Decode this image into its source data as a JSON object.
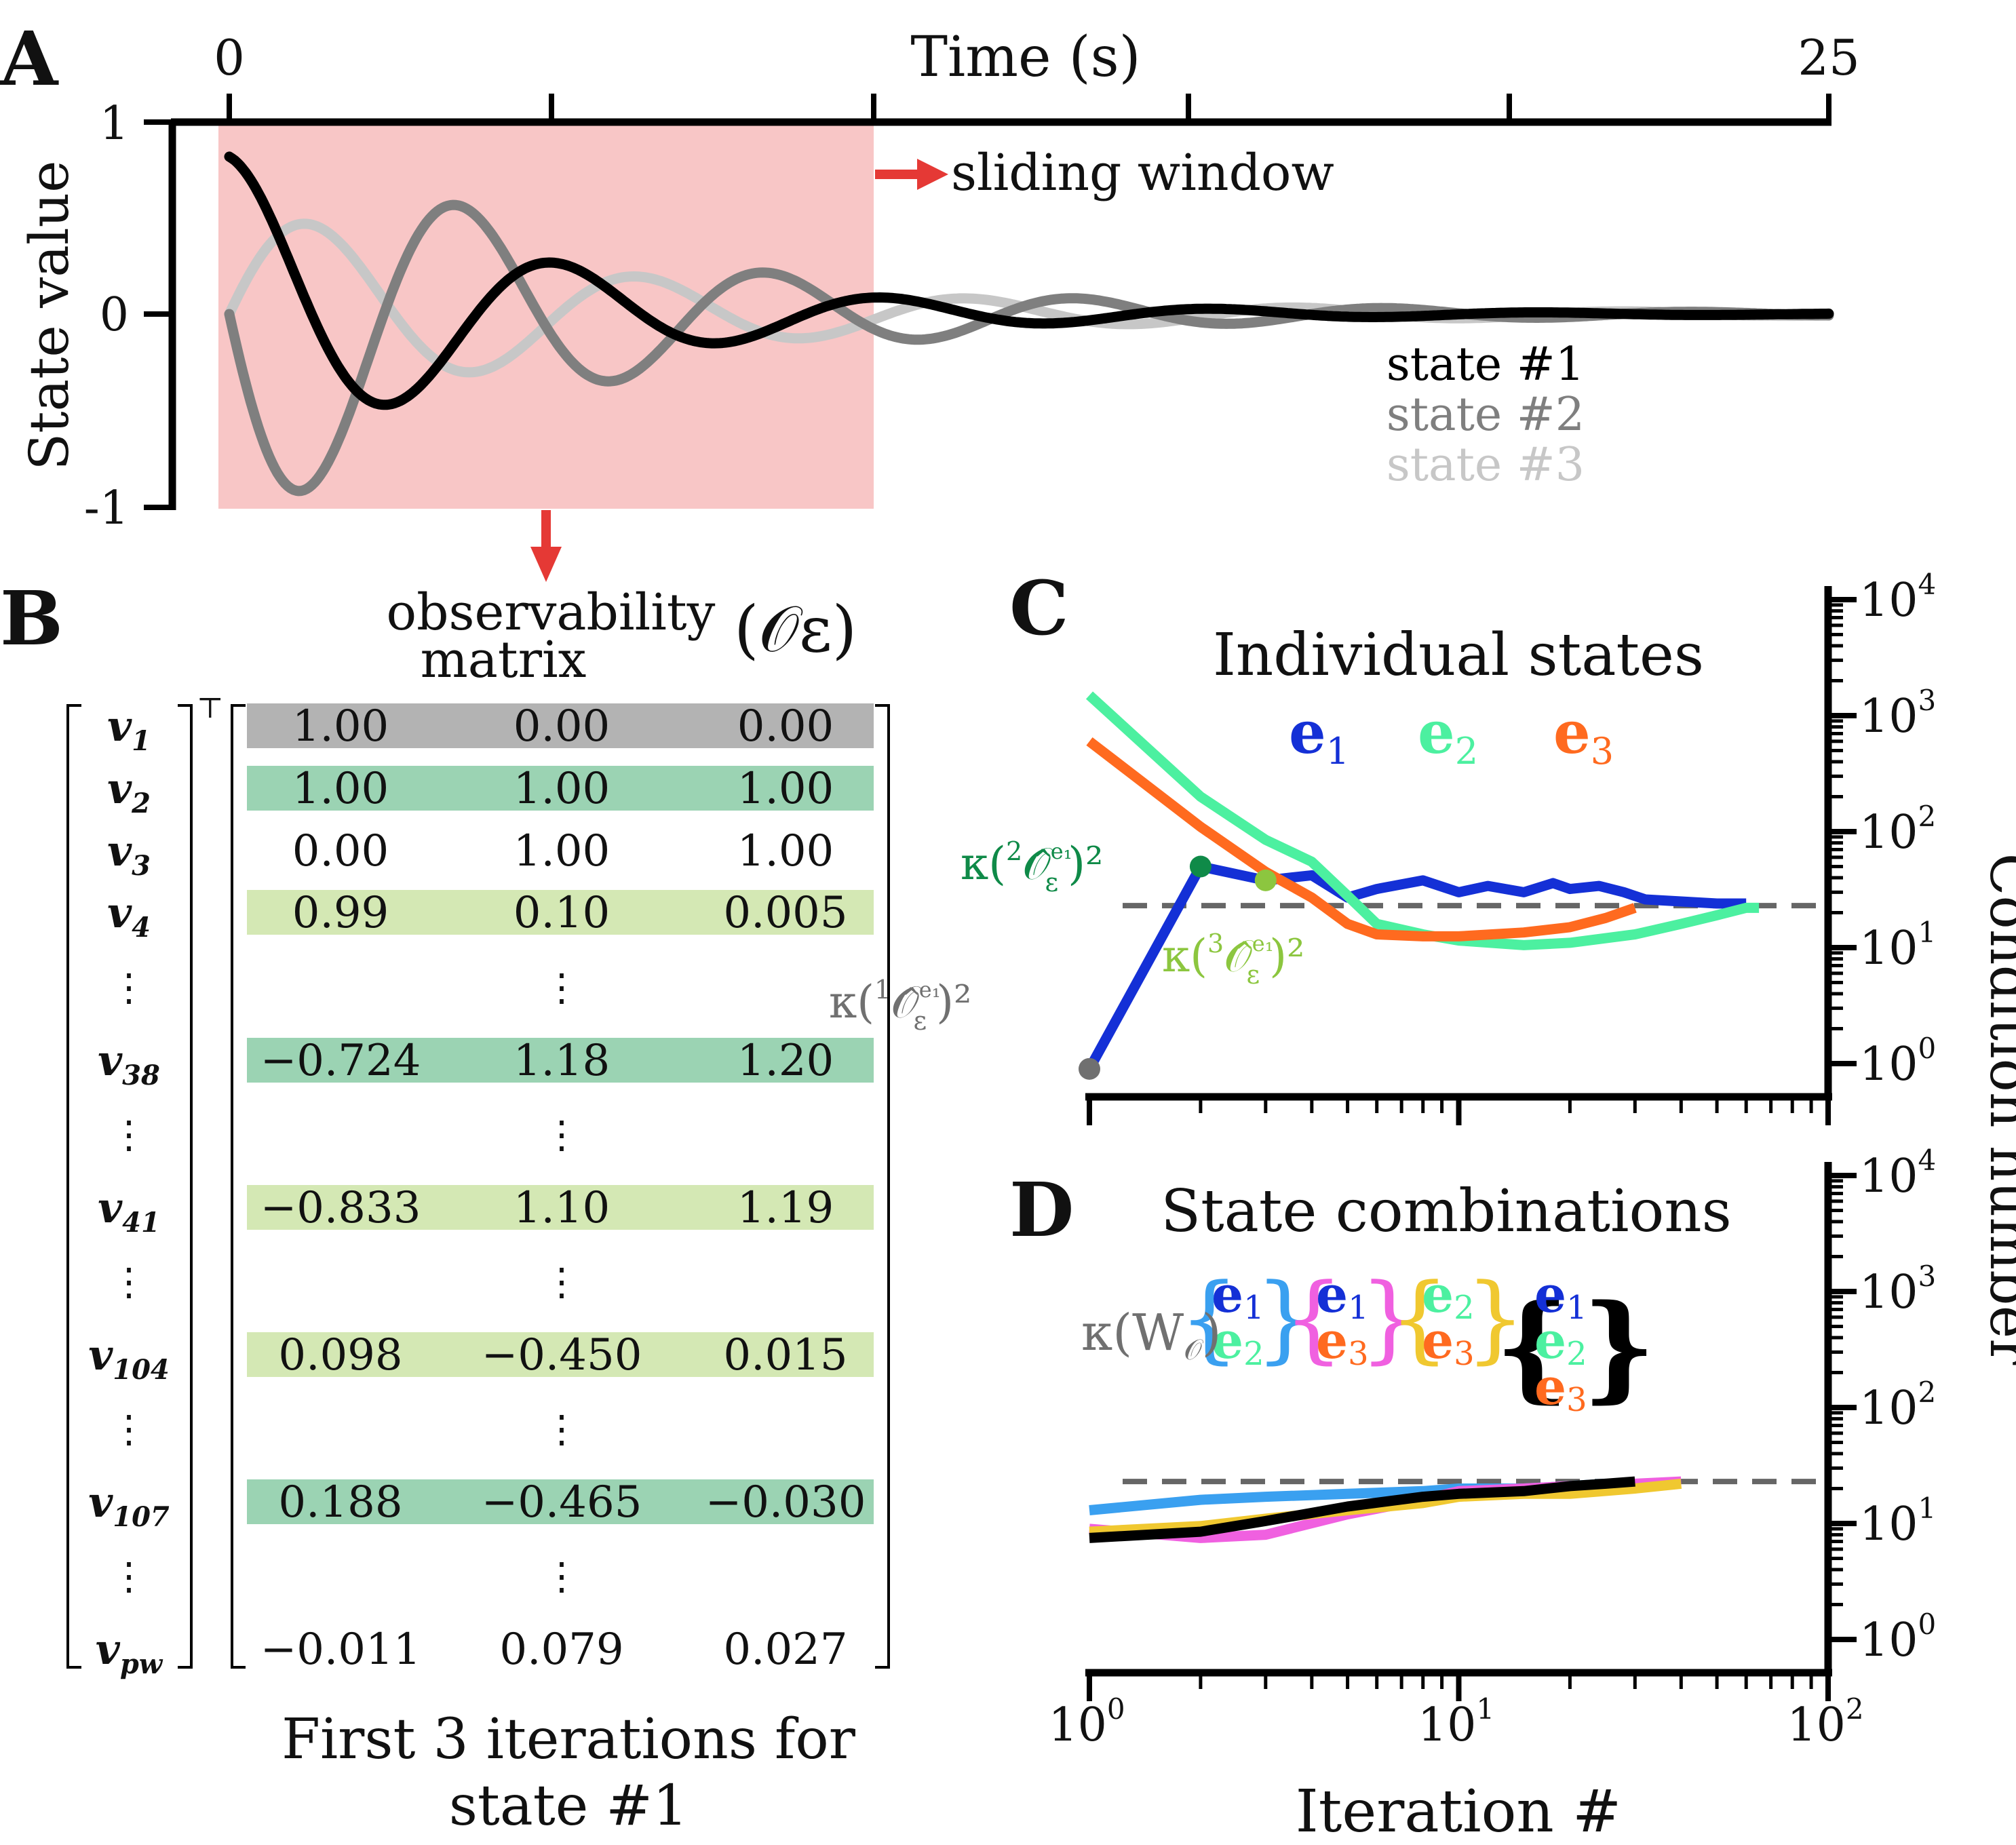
{
  "panels": {
    "A": {
      "letter": "A",
      "x_label": "Time (s)",
      "x_ticks": [
        "0",
        "25"
      ],
      "y_label": "State value",
      "y_ticks": [
        "1",
        "0",
        "-1"
      ],
      "window_label": "sliding window",
      "legend": [
        {
          "label": "state #1",
          "color": "#000000"
        },
        {
          "label": "state #2",
          "color": "#7f7f7f"
        },
        {
          "label": "state #3",
          "color": "#c7c7c7"
        }
      ],
      "window_color": "#f8c6c6",
      "arrow_color": "#e53935"
    },
    "B": {
      "letter": "B",
      "heading_line1": "observability",
      "heading_line2": "matrix",
      "symbol": "(𝒪ε)",
      "transpose": "⊤",
      "caption_line1": "First 3 iterations for",
      "caption_line2": "state #1",
      "ellipsis": "⋮",
      "rows": [
        {
          "label": "v",
          "sub": "1",
          "cells": [
            "1.00",
            "0.00",
            "0.00"
          ],
          "highlight": "#b3b3b3"
        },
        {
          "label": "v",
          "sub": "2",
          "cells": [
            "1.00",
            "1.00",
            "1.00"
          ],
          "highlight": "#9bd3b3"
        },
        {
          "label": "v",
          "sub": "3",
          "cells": [
            "0.00",
            "1.00",
            "1.00"
          ],
          "highlight": "none"
        },
        {
          "label": "v",
          "sub": "4",
          "cells": [
            "0.99",
            "0.10",
            "0.005"
          ],
          "highlight": "#d4e8b4"
        },
        {
          "label": "v",
          "sub": "38",
          "cells": [
            "−0.724",
            "1.18",
            "1.20"
          ],
          "highlight": "#9bd3b3"
        },
        {
          "label": "v",
          "sub": "41",
          "cells": [
            "−0.833",
            "1.10",
            "1.19"
          ],
          "highlight": "#d4e8b4"
        },
        {
          "label": "v",
          "sub": "104",
          "cells": [
            "0.098",
            "−0.450",
            "0.015"
          ],
          "highlight": "#d4e8b4"
        },
        {
          "label": "v",
          "sub": "107",
          "cells": [
            "0.188",
            "−0.465",
            "−0.030"
          ],
          "highlight": "#9bd3b3"
        },
        {
          "label": "v",
          "sub": "pw",
          "cells": [
            "−0.011",
            "0.079",
            "0.027"
          ],
          "highlight": "none"
        }
      ]
    },
    "C": {
      "letter": "C",
      "title": "Individual states",
      "legend": [
        {
          "main": "e",
          "sub": "1",
          "color": "#1430d6"
        },
        {
          "main": "e",
          "sub": "2",
          "color": "#4cf0a0"
        },
        {
          "main": "e",
          "sub": "3",
          "color": "#ff6a1f"
        }
      ],
      "annotations": [
        {
          "kappa": "κ(",
          "pre": "1",
          "sym": "𝒪̂",
          "sup": "e₁",
          "sub": "ε",
          "post": ")²",
          "color": "#707070"
        },
        {
          "kappa": "κ(",
          "pre": "2",
          "sym": "𝒪̂",
          "sup": "e₁",
          "sub": "ε",
          "post": ")²",
          "color": "#0f8a48"
        },
        {
          "kappa": "κ(",
          "pre": "3",
          "sym": "𝒪̂",
          "sup": "e₁",
          "sub": "ε",
          "post": ")²",
          "color": "#8cc63f"
        }
      ],
      "marker_colors": [
        "#707070",
        "#0f8a48",
        "#8cc63f"
      ]
    },
    "D": {
      "letter": "D",
      "title": "State combinations",
      "ref_label": "κ(W",
      "ref_sub": "𝒪",
      "ref_close": ")",
      "groups": [
        {
          "bracket_color": "#3aa0f0",
          "items": [
            {
              "main": "e",
              "sub": "1",
              "color": "#1430d6"
            },
            {
              "main": "e",
              "sub": "2",
              "color": "#4cf0a0"
            }
          ]
        },
        {
          "bracket_color": "#f060e0",
          "items": [
            {
              "main": "e",
              "sub": "1",
              "color": "#1430d6"
            },
            {
              "main": "e",
              "sub": "3",
              "color": "#ff6a1f"
            }
          ]
        },
        {
          "bracket_color": "#f0c830",
          "items": [
            {
              "main": "e",
              "sub": "2",
              "color": "#4cf0a0"
            },
            {
              "main": "e",
              "sub": "3",
              "color": "#ff6a1f"
            }
          ]
        },
        {
          "bracket_color": "#000000",
          "items": [
            {
              "main": "e",
              "sub": "1",
              "color": "#1430d6"
            },
            {
              "main": "e",
              "sub": "2",
              "color": "#4cf0a0"
            },
            {
              "main": "e",
              "sub": "3",
              "color": "#ff6a1f"
            }
          ]
        }
      ]
    },
    "shared": {
      "y_label": "Condition number",
      "x_label": "Iteration #",
      "x_ticks": [
        {
          "base": "10",
          "exp": "0"
        },
        {
          "base": "10",
          "exp": "1"
        },
        {
          "base": "10",
          "exp": "2"
        }
      ],
      "y_ticks": [
        {
          "base": "10",
          "exp": "0"
        },
        {
          "base": "10",
          "exp": "1"
        },
        {
          "base": "10",
          "exp": "2"
        },
        {
          "base": "10",
          "exp": "3"
        },
        {
          "base": "10",
          "exp": "4"
        }
      ]
    }
  },
  "chart_data": [
    {
      "type": "line",
      "panel": "A",
      "xlabel": "Time (s)",
      "ylabel": "State value",
      "xlim": [
        0,
        25
      ],
      "ylim": [
        -1,
        1
      ],
      "window": [
        0,
        10
      ],
      "model": "damped oscillation, state = amp * exp(-decay*t) * sin(omega*t + phase)",
      "series": [
        {
          "name": "state #1",
          "color": "#000000",
          "amp": 0.82,
          "decay": 0.22,
          "omega": 1.22,
          "phase": 1.5708
        },
        {
          "name": "state #2",
          "color": "#7f7f7f",
          "amp": 1.16,
          "decay": 0.2,
          "omega": 1.3,
          "phase": 3.1416
        },
        {
          "name": "state #3",
          "color": "#c7c7c7",
          "amp": 0.58,
          "decay": 0.17,
          "omega": 1.22,
          "phase": 0.0
        }
      ]
    },
    {
      "type": "line",
      "panel": "C",
      "title": "Individual states",
      "xlabel": "Iteration #",
      "ylabel": "Condition number",
      "xscale": "log",
      "yscale": "log",
      "xlim": [
        1,
        100
      ],
      "ylim": [
        0.7,
        10000
      ],
      "reference": 23,
      "series": [
        {
          "name": "e1",
          "color": "#1430d6",
          "x": [
            1,
            2,
            3,
            4,
            5,
            6,
            8,
            10,
            12,
            15,
            18,
            20,
            24,
            28,
            32,
            40,
            50,
            60
          ],
          "y": [
            0.9,
            50,
            38,
            42,
            27,
            32,
            38,
            30,
            34,
            30,
            36,
            32,
            34,
            30,
            26,
            25,
            24,
            24
          ]
        },
        {
          "name": "e2",
          "color": "#4cf0a0",
          "x": [
            1,
            2,
            3,
            4,
            5,
            6,
            8,
            10,
            15,
            20,
            30,
            40,
            50,
            60,
            65
          ],
          "y": [
            1500,
            200,
            85,
            55,
            28,
            16,
            13,
            11.5,
            10.5,
            11,
            13,
            16,
            19,
            22,
            22
          ]
        },
        {
          "name": "e3",
          "color": "#ff6a1f",
          "x": [
            1,
            2,
            3,
            4,
            5,
            6,
            8,
            10,
            15,
            20,
            25,
            30
          ],
          "y": [
            600,
            110,
            45,
            27,
            16,
            13,
            12.5,
            12.5,
            13.5,
            15,
            18,
            22
          ]
        }
      ],
      "markers": [
        {
          "x": 1,
          "y": 0.9,
          "label": "κ(¹𝒪̂ε^e₁)²",
          "color": "#707070"
        },
        {
          "x": 2,
          "y": 50,
          "label": "κ(²𝒪̂ε^e₁)²",
          "color": "#0f8a48"
        },
        {
          "x": 3,
          "y": 38,
          "label": "κ(³𝒪̂ε^e₁)²",
          "color": "#8cc63f"
        }
      ]
    },
    {
      "type": "line",
      "panel": "D",
      "title": "State combinations",
      "xlabel": "Iteration #",
      "ylabel": "Condition number",
      "xscale": "log",
      "yscale": "log",
      "xlim": [
        1,
        100
      ],
      "ylim": [
        0.7,
        10000
      ],
      "reference": 23,
      "reference_label": "κ(W𝒪)",
      "series": [
        {
          "name": "{e1,e2}",
          "color": "#3aa0f0",
          "x": [
            1,
            2,
            3,
            5,
            8,
            10,
            15,
            20,
            25
          ],
          "y": [
            13,
            16,
            17,
            18,
            19,
            20,
            20,
            21,
            22
          ]
        },
        {
          "name": "{e1,e3}",
          "color": "#f060e0",
          "x": [
            1,
            2,
            3,
            5,
            8,
            10,
            15,
            20,
            30,
            40
          ],
          "y": [
            9,
            7.5,
            8,
            12,
            16,
            19,
            20,
            21,
            22,
            23
          ]
        },
        {
          "name": "{e2,e3}",
          "color": "#f0c830",
          "x": [
            1,
            2,
            3,
            5,
            8,
            10,
            15,
            20,
            30,
            40
          ],
          "y": [
            8.5,
            9.5,
            11,
            13,
            15,
            17,
            18,
            18,
            20,
            22
          ]
        },
        {
          "name": "{e1,e2,e3}",
          "color": "#000000",
          "x": [
            1,
            2,
            3,
            5,
            8,
            10,
            15,
            20,
            25,
            30
          ],
          "y": [
            7.5,
            8.5,
            10.5,
            14,
            17,
            18,
            19,
            21,
            22,
            23
          ]
        }
      ]
    }
  ]
}
